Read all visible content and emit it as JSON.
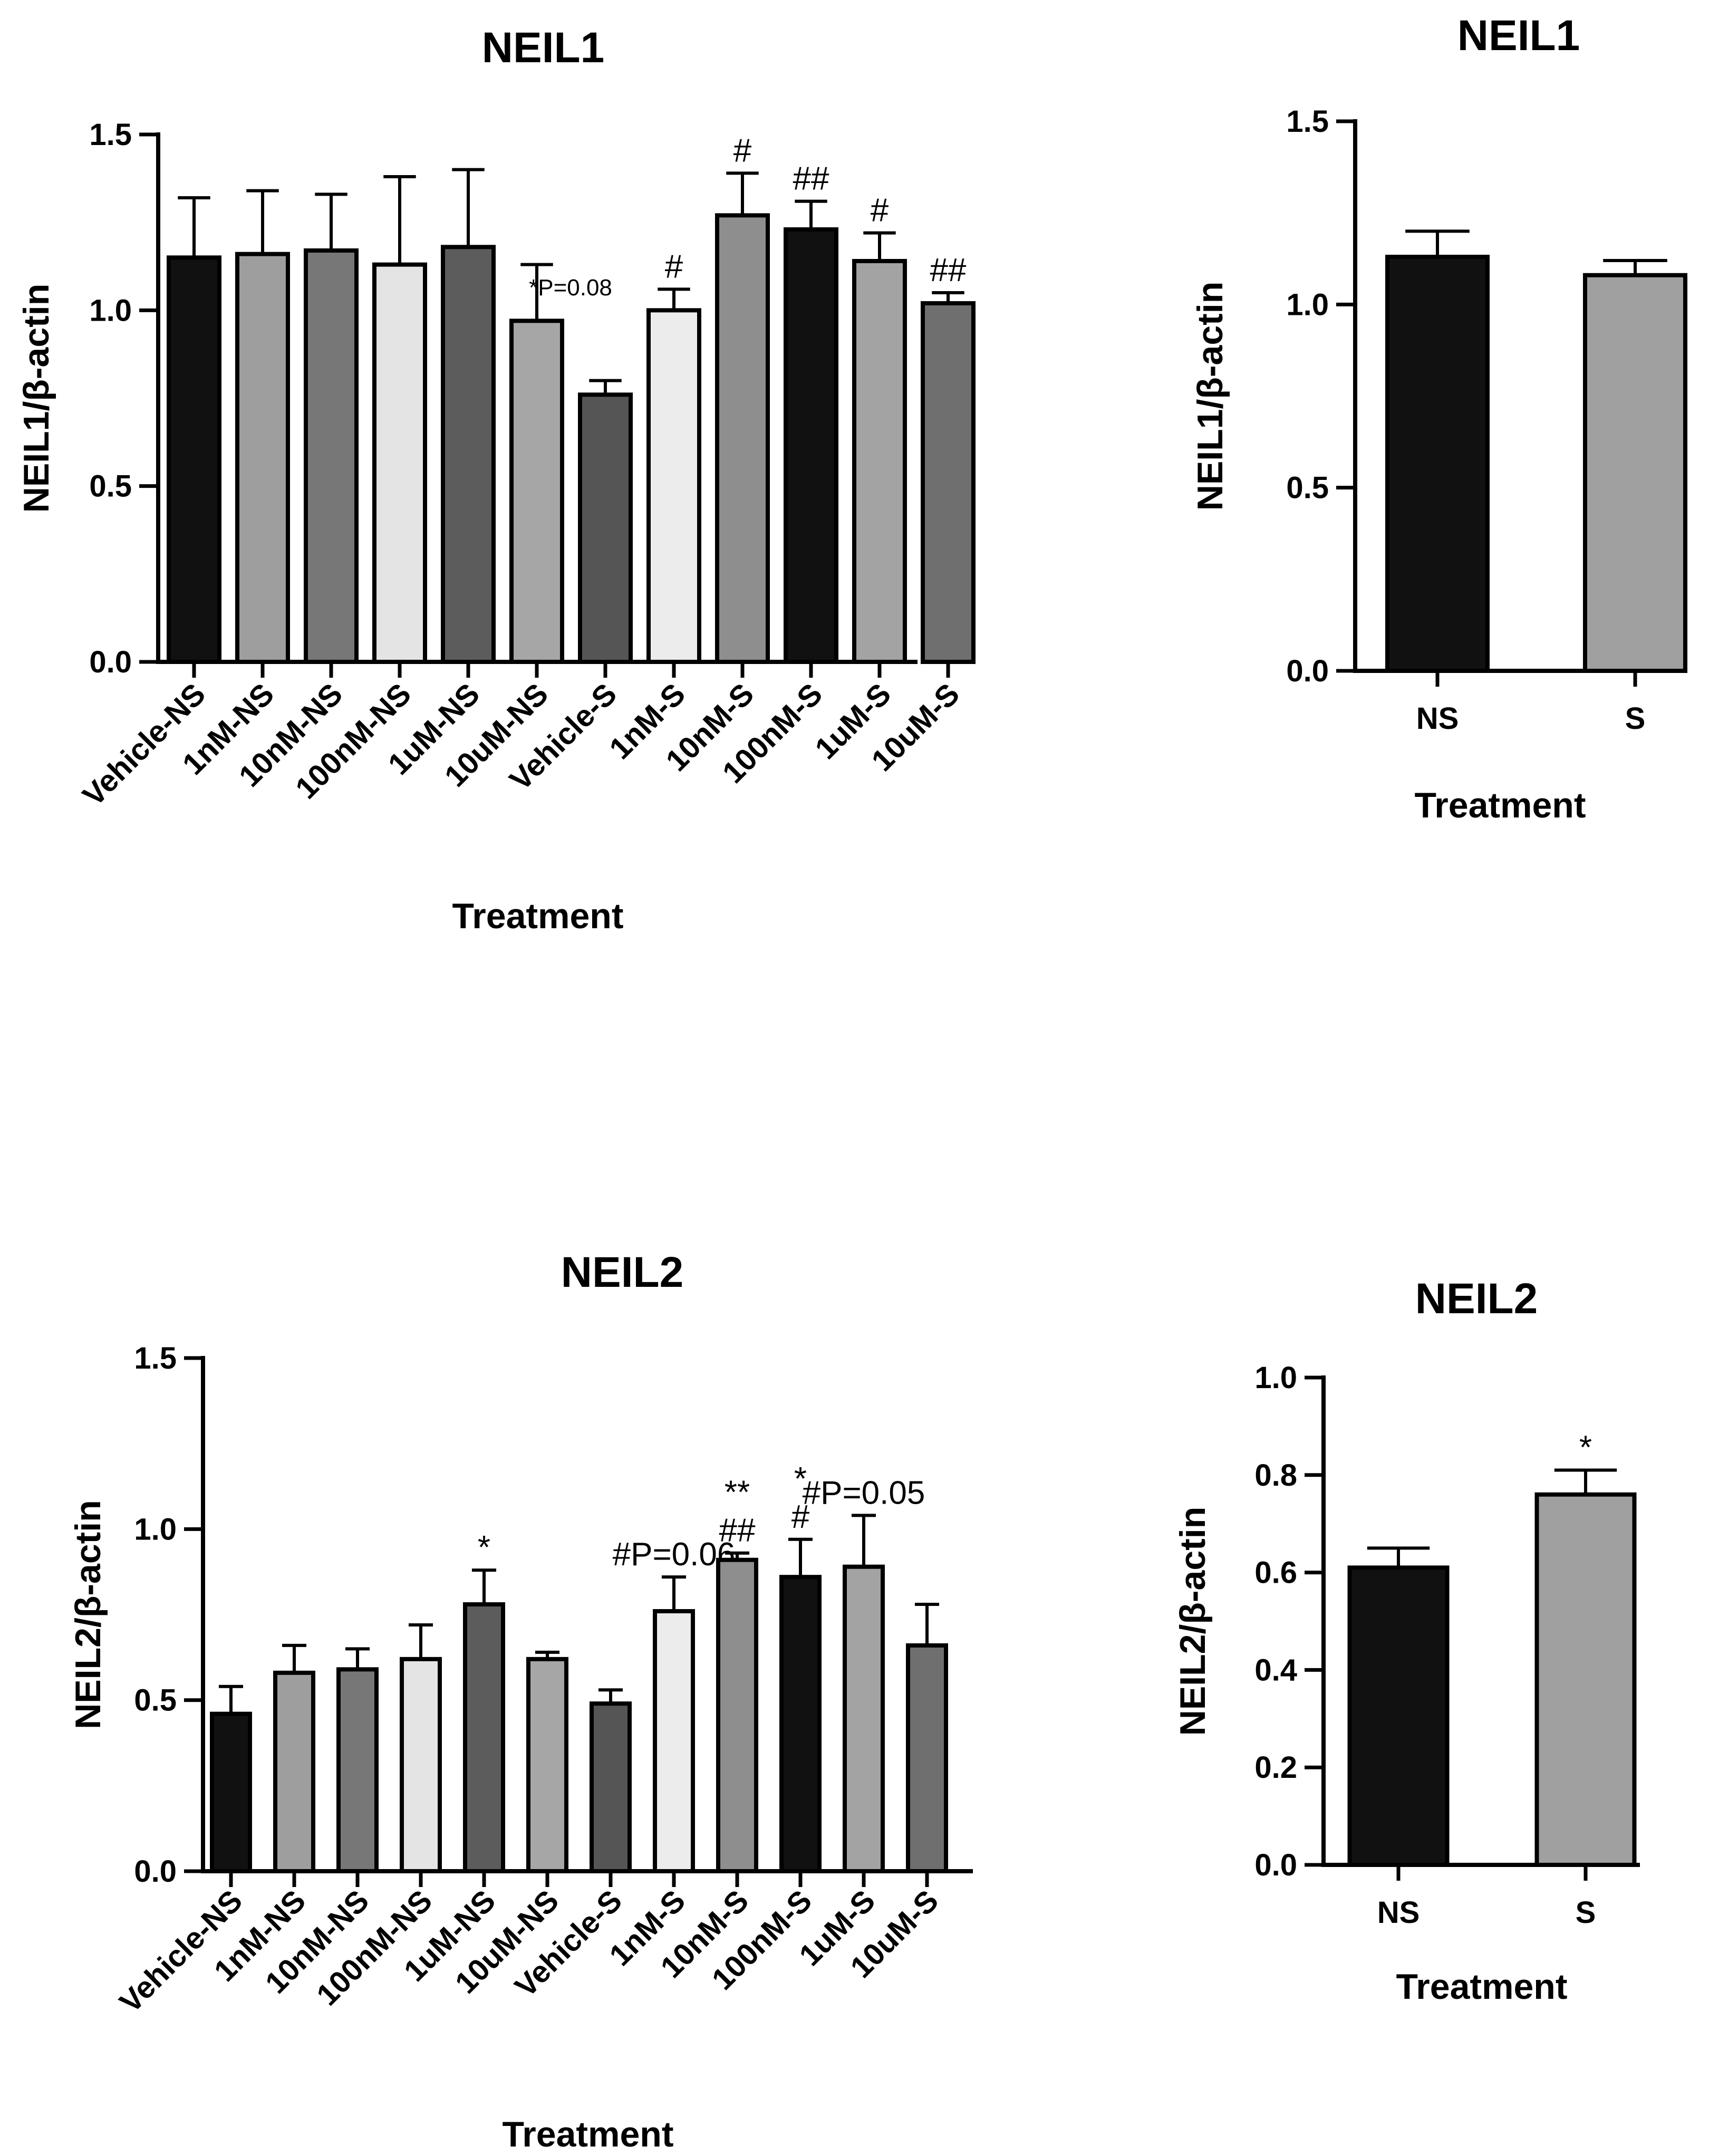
{
  "chart_data": [
    {
      "id": "neil1-treatments",
      "type": "bar",
      "title": "NEIL1",
      "xlabel": "Treatment",
      "ylabel": "NEIL1/β-actin",
      "ylim": [
        0,
        1.5
      ],
      "yticks": [
        "0.0",
        "0.5",
        "1.0",
        "1.5"
      ],
      "categories": [
        "Vehicle-NS",
        "1nM-NS",
        "10nM-NS",
        "100nM-NS",
        "1uM-NS",
        "10uM-NS",
        "Vehicle-S",
        "1nM-S",
        "10nM-S",
        "100nM-S",
        "1uM-S",
        "10uM-S"
      ],
      "values": [
        1.15,
        1.16,
        1.17,
        1.13,
        1.18,
        0.97,
        0.76,
        1.0,
        1.27,
        1.23,
        1.14,
        1.02
      ],
      "errors": [
        0.17,
        0.18,
        0.16,
        0.25,
        0.22,
        0.16,
        0.04,
        0.06,
        0.12,
        0.08,
        0.08,
        0.03
      ],
      "colors": [
        "#111111",
        "#9e9e9e",
        "#777777",
        "#e4e4e4",
        "#5c5c5c",
        "#a6a6a6",
        "#555555",
        "#ececec",
        "#8e8e8e",
        "#111111",
        "#a3a3a3",
        "#6f6f6f"
      ],
      "annotations": [
        "",
        "",
        "",
        "",
        "",
        "",
        "",
        "#",
        "#",
        "##",
        "#",
        "##"
      ],
      "note": "*P=0.08"
    },
    {
      "id": "neil1-summary",
      "type": "bar",
      "title": "NEIL1",
      "xlabel": "Treatment",
      "ylabel": "NEIL1/β-actin",
      "ylim": [
        0,
        1.5
      ],
      "yticks": [
        "0.0",
        "0.5",
        "1.0",
        "1.5"
      ],
      "categories": [
        "NS",
        "S"
      ],
      "values": [
        1.13,
        1.08
      ],
      "errors": [
        0.07,
        0.04
      ],
      "colors": [
        "#111111",
        "#a0a0a0"
      ],
      "annotations": [
        "",
        ""
      ]
    },
    {
      "id": "neil2-treatments",
      "type": "bar",
      "title": "NEIL2",
      "xlabel": "Treatment",
      "ylabel": "NEIL2/β-actin",
      "ylim": [
        0,
        1.5
      ],
      "yticks": [
        "0.0",
        "0.5",
        "1.0",
        "1.5"
      ],
      "categories": [
        "Vehicle-NS",
        "1nM-NS",
        "10nM-NS",
        "100nM-NS",
        "1uM-NS",
        "10uM-NS",
        "Vehicle-S",
        "1nM-S",
        "10nM-S",
        "100nM-S",
        "1uM-S",
        "10uM-S"
      ],
      "values": [
        0.46,
        0.58,
        0.59,
        0.62,
        0.78,
        0.62,
        0.49,
        0.76,
        0.91,
        0.86,
        0.89,
        0.66
      ],
      "errors": [
        0.08,
        0.08,
        0.06,
        0.1,
        0.1,
        0.02,
        0.04,
        0.1,
        0.02,
        0.11,
        0.15,
        0.12
      ],
      "colors": [
        "#111111",
        "#9e9e9e",
        "#777777",
        "#e4e4e4",
        "#5c5c5c",
        "#a6a6a6",
        "#555555",
        "#ececec",
        "#8e8e8e",
        "#111111",
        "#a3a3a3",
        "#6f6f6f"
      ],
      "annotations": [
        "",
        "",
        "",
        "",
        "*",
        "",
        "",
        "#P=0.06",
        "**\n##",
        "*\n#",
        "#P=0.05",
        ""
      ]
    },
    {
      "id": "neil2-summary",
      "type": "bar",
      "title": "NEIL2",
      "xlabel": "Treatment",
      "ylabel": "NEIL2/β-actin",
      "ylim": [
        0,
        1.0
      ],
      "yticks": [
        "0.0",
        "0.2",
        "0.4",
        "0.6",
        "0.8",
        "1.0"
      ],
      "categories": [
        "NS",
        "S"
      ],
      "values": [
        0.61,
        0.76
      ],
      "errors": [
        0.04,
        0.05
      ],
      "colors": [
        "#111111",
        "#a0a0a0"
      ],
      "annotations": [
        "",
        "*"
      ]
    }
  ]
}
